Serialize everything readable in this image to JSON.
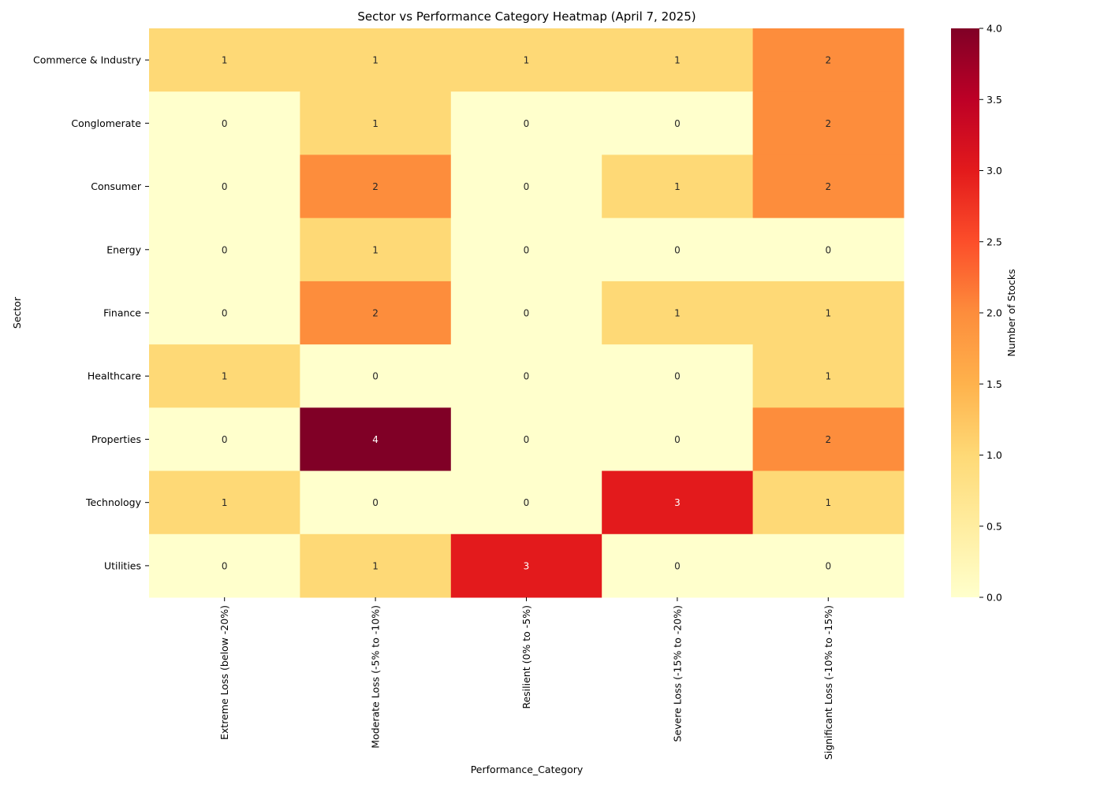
{
  "chart_data": {
    "type": "heatmap",
    "title": "Sector vs Performance Category Heatmap (April 7, 2025)",
    "xlabel": "Performance_Category",
    "ylabel": "Sector",
    "columns": [
      "Extreme Loss (below -20%)",
      "Moderate Loss (-5% to -10%)",
      "Resilient (0% to -5%)",
      "Severe Loss (-15% to -20%)",
      "Significant Loss (-10% to -15%)"
    ],
    "rows": [
      "Commerce & Industry",
      "Conglomerate",
      "Consumer",
      "Energy",
      "Finance",
      "Healthcare",
      "Properties",
      "Technology",
      "Utilities"
    ],
    "values": [
      [
        1,
        1,
        1,
        1,
        2
      ],
      [
        0,
        1,
        0,
        0,
        2
      ],
      [
        0,
        2,
        0,
        1,
        2
      ],
      [
        0,
        1,
        0,
        0,
        0
      ],
      [
        0,
        2,
        0,
        1,
        1
      ],
      [
        1,
        0,
        0,
        0,
        1
      ],
      [
        0,
        4,
        0,
        0,
        2
      ],
      [
        1,
        0,
        0,
        3,
        1
      ],
      [
        0,
        1,
        3,
        0,
        0
      ]
    ],
    "colorbar": {
      "label": "Number of Stocks",
      "range": [
        0,
        4
      ],
      "ticks": [
        "0.0",
        "0.5",
        "1.0",
        "1.5",
        "2.0",
        "2.5",
        "3.0",
        "3.5",
        "4.0"
      ],
      "colormap": [
        "#ffffcc",
        "#ffeda0",
        "#fed976",
        "#feb24c",
        "#fd8d3c",
        "#fc4e2a",
        "#e31a1c",
        "#bd0026",
        "#800026"
      ]
    },
    "annotations": true
  }
}
